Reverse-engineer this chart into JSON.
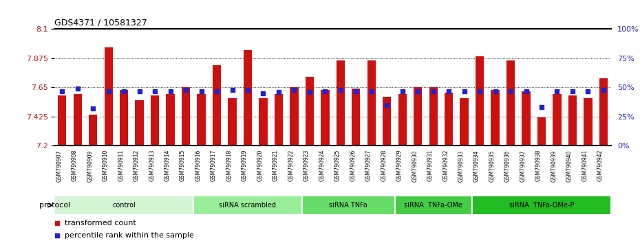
{
  "title": "GDS4371 / 10581327",
  "samples": [
    "GSM790907",
    "GSM790908",
    "GSM790909",
    "GSM790910",
    "GSM790911",
    "GSM790912",
    "GSM790913",
    "GSM790914",
    "GSM790915",
    "GSM790916",
    "GSM790917",
    "GSM790918",
    "GSM790919",
    "GSM790920",
    "GSM790921",
    "GSM790922",
    "GSM790923",
    "GSM790924",
    "GSM790925",
    "GSM790926",
    "GSM790927",
    "GSM790928",
    "GSM790929",
    "GSM790930",
    "GSM790931",
    "GSM790932",
    "GSM790933",
    "GSM790934",
    "GSM790935",
    "GSM790936",
    "GSM790937",
    "GSM790938",
    "GSM790939",
    "GSM790940",
    "GSM790941",
    "GSM790942"
  ],
  "red_values": [
    7.59,
    7.6,
    7.44,
    7.96,
    7.63,
    7.55,
    7.59,
    7.6,
    7.65,
    7.6,
    7.82,
    7.57,
    7.94,
    7.57,
    7.6,
    7.65,
    7.73,
    7.63,
    7.86,
    7.64,
    7.86,
    7.58,
    7.6,
    7.65,
    7.65,
    7.61,
    7.57,
    7.89,
    7.63,
    7.86,
    7.62,
    7.42,
    7.6,
    7.59,
    7.57,
    7.72
  ],
  "blue_values": [
    0.47,
    0.49,
    0.32,
    0.47,
    0.47,
    0.47,
    0.47,
    0.47,
    0.48,
    0.47,
    0.47,
    0.48,
    0.48,
    0.45,
    0.46,
    0.48,
    0.46,
    0.47,
    0.48,
    0.47,
    0.47,
    0.35,
    0.47,
    0.47,
    0.47,
    0.47,
    0.47,
    0.47,
    0.47,
    0.47,
    0.47,
    0.33,
    0.47,
    0.47,
    0.47,
    0.48
  ],
  "ylim_left": [
    7.2,
    8.1
  ],
  "ylim_right": [
    0,
    100
  ],
  "yticks_left": [
    7.2,
    7.425,
    7.65,
    7.875,
    8.1
  ],
  "yticks_right": [
    0,
    25,
    50,
    75,
    100
  ],
  "ytick_labels_left": [
    "7.2",
    "7.425",
    "7.65",
    "7.875",
    "8.1"
  ],
  "ytick_labels_right": [
    "0%",
    "25%",
    "50%",
    "75%",
    "100%"
  ],
  "bar_color": "#cc1111",
  "dot_color": "#2222cc",
  "groups": [
    {
      "label": "control",
      "start": 0,
      "end": 9,
      "color": "#d4f5d4"
    },
    {
      "label": "siRNA scrambled",
      "start": 9,
      "end": 16,
      "color": "#99ee99"
    },
    {
      "label": "siRNA TNFa",
      "start": 16,
      "end": 22,
      "color": "#66dd66"
    },
    {
      "label": "siRNA  TNFa-OMe",
      "start": 22,
      "end": 27,
      "color": "#44cc44"
    },
    {
      "label": "siRNA  TNFa-OMe-P",
      "start": 27,
      "end": 36,
      "color": "#22bb22"
    }
  ],
  "protocol_label": "protocol",
  "legend_red": "transformed count",
  "legend_blue": "percentile rank within the sample",
  "bar_width": 0.55,
  "ybase": 7.2,
  "xtick_bg": "#d8d8d8",
  "chart_bg": "#ffffff"
}
